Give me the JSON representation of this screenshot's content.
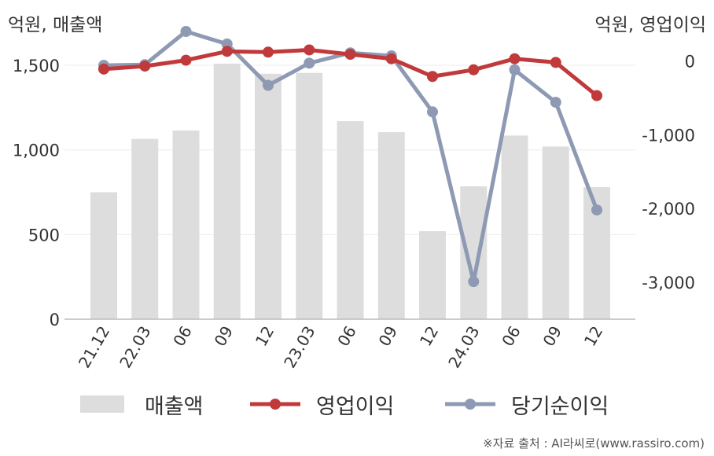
{
  "chart_data": {
    "type": "bar+line",
    "left_unit": "억원, 매출액",
    "right_unit": "억원, 영업이익",
    "categories": [
      "21.12",
      "22.03",
      "06",
      "09",
      "12",
      "23.03",
      "06",
      "09",
      "12",
      "24.03",
      "06",
      "09",
      "12"
    ],
    "series": [
      {
        "name": "매출액",
        "type": "bar",
        "axis": "left",
        "color": "#dddddd",
        "values": [
          750,
          1065,
          1115,
          1510,
          1450,
          1455,
          1170,
          1105,
          520,
          785,
          1085,
          1020,
          780
        ]
      },
      {
        "name": "영업이익",
        "type": "line",
        "axis": "right",
        "color": "#c0393b",
        "values": [
          -110,
          -70,
          10,
          130,
          120,
          150,
          90,
          30,
          -210,
          -120,
          30,
          -20,
          -470
        ]
      },
      {
        "name": "당기순이익",
        "type": "line",
        "axis": "right",
        "color": "#8e9ab3",
        "values": [
          -60,
          -50,
          400,
          230,
          -330,
          -30,
          110,
          70,
          -690,
          -2990,
          -120,
          -560,
          -2020
        ]
      }
    ],
    "left_axis": {
      "ticks": [
        0,
        500,
        "1,000",
        "1,500"
      ],
      "tick_values": [
        0,
        500,
        1000,
        1500
      ],
      "ylim": [
        0,
        1700
      ]
    },
    "right_axis": {
      "ticks": [
        "0",
        "-1,000",
        "-2,000",
        "-3,000"
      ],
      "tick_values": [
        0,
        -1000,
        -2000,
        -3000
      ],
      "ylim": [
        -3500,
        400
      ]
    },
    "grid": true,
    "legend_position": "bottom"
  },
  "legend": [
    {
      "label": "매출액",
      "icon": "bar-swatch",
      "color": "#dddddd"
    },
    {
      "label": "영업이익",
      "icon": "line-dot",
      "color": "#c0393b"
    },
    {
      "label": "당기순이익",
      "icon": "line-dot",
      "color": "#8e9ab3"
    }
  ],
  "source": "※자료 출처 : AI라씨로(www.rassiro.com)"
}
